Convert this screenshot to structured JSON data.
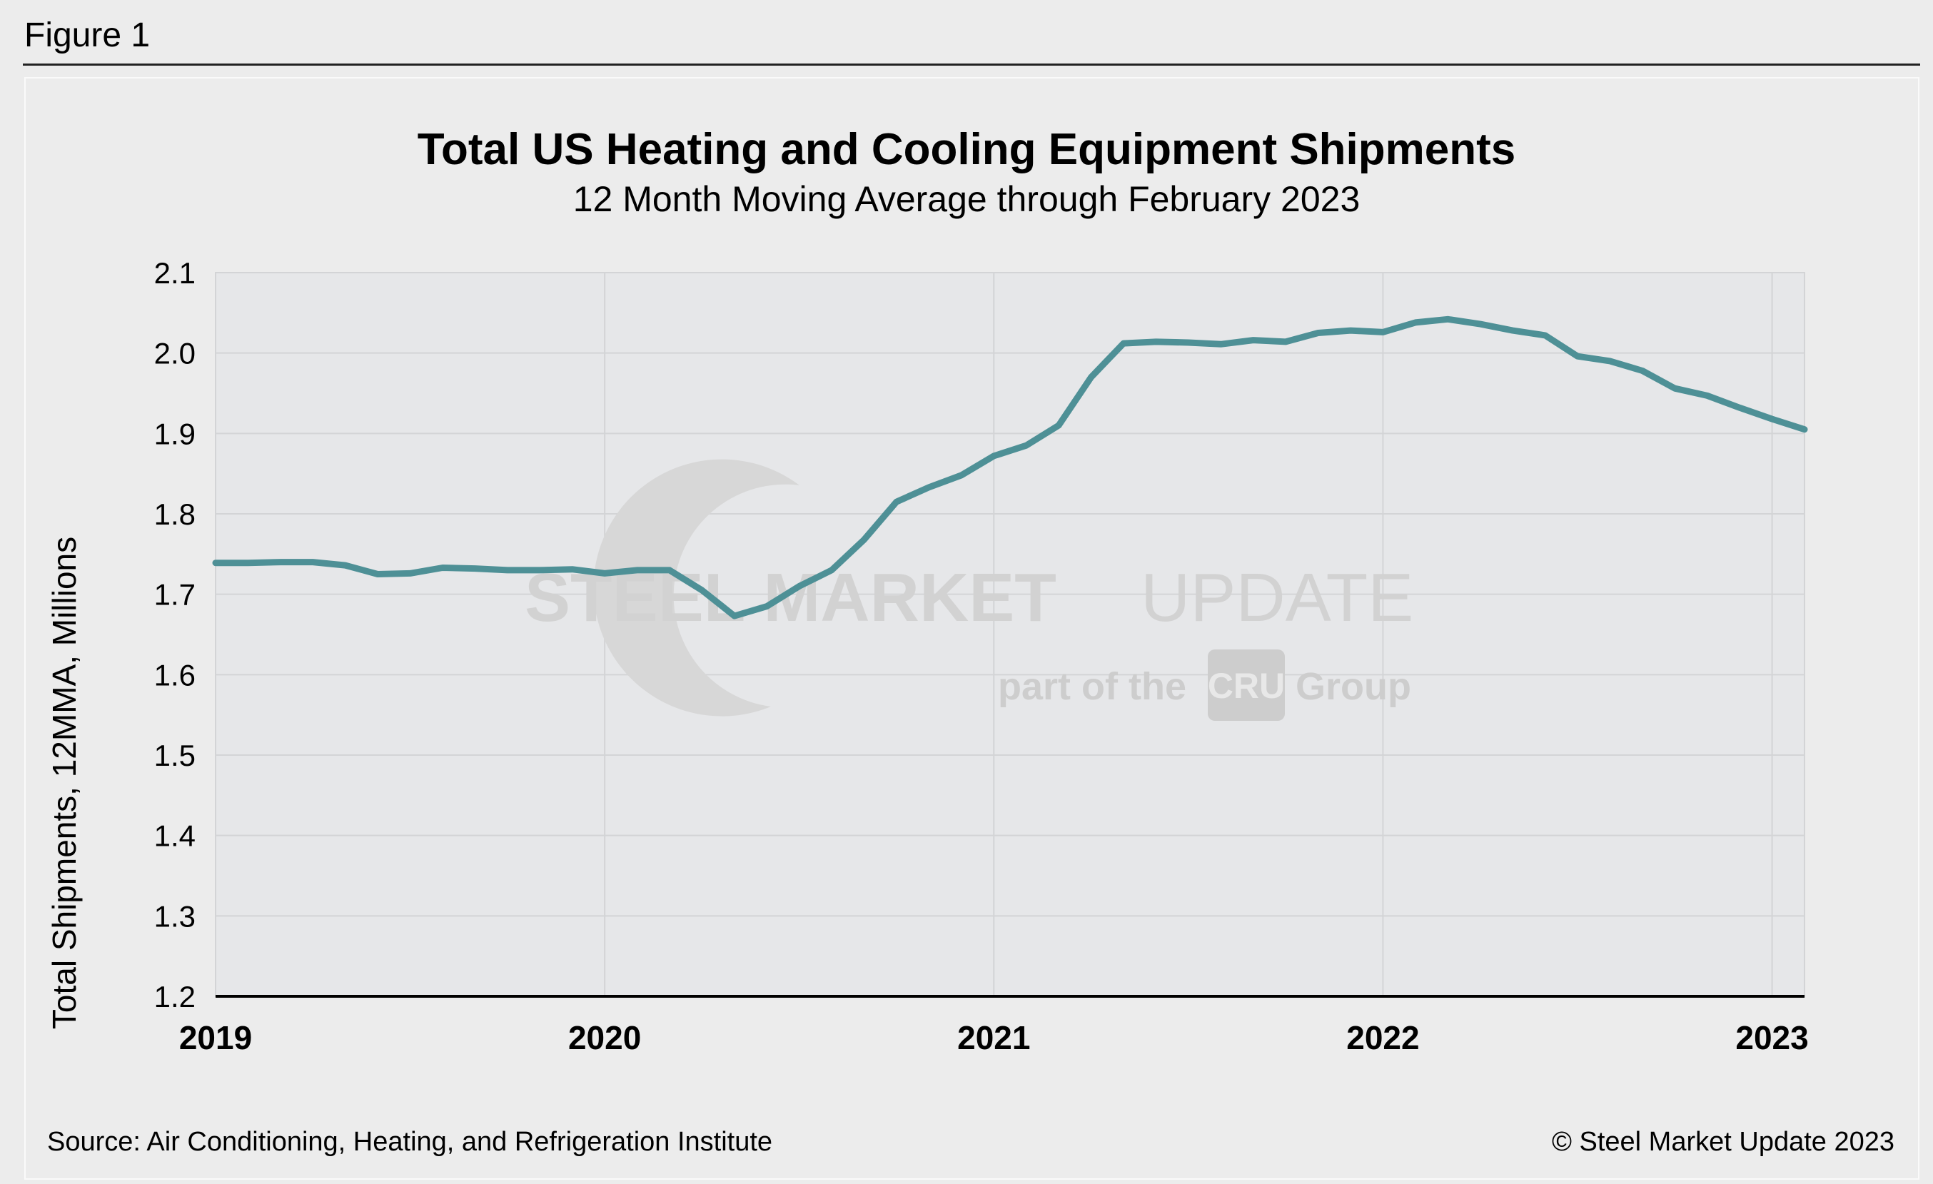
{
  "figure_label": "Figure 1",
  "source": "Source: Air Conditioning, Heating, and Refrigeration Institute",
  "copyright": "© Steel Market Update 2023",
  "watermark": {
    "brand_bold": "STEEL MARKET",
    "brand_light": "UPDATE",
    "tagline_pre": "part of the",
    "tagline_mark": "CRU",
    "tagline_post": "Group"
  },
  "colors": {
    "line": "#4e9096",
    "plot_bg": "#e6e7e9",
    "grid": "#d3d4d6",
    "axis": "#000000"
  },
  "chart_data": {
    "type": "line",
    "title": "Total US Heating and Cooling Equipment Shipments",
    "subtitle": "12 Month Moving Average through February 2023",
    "ylabel": "Total Shipments, 12MMA, Millions",
    "xlabel": "",
    "ylim": [
      1.2,
      2.1
    ],
    "yticks": [
      "1.2",
      "1.3",
      "1.4",
      "1.5",
      "1.6",
      "1.7",
      "1.8",
      "1.9",
      "2.0",
      "2.1"
    ],
    "xlim": [
      "2019-01",
      "2023-02"
    ],
    "xticks": [
      "2019",
      "2020",
      "2021",
      "2022",
      "2023"
    ],
    "grid": true,
    "legend": "none",
    "series": [
      {
        "x": [
          "2019-01",
          "2019-02",
          "2019-03",
          "2019-04",
          "2019-05",
          "2019-06",
          "2019-07",
          "2019-08",
          "2019-09",
          "2019-10",
          "2019-11",
          "2019-12",
          "2020-01",
          "2020-02",
          "2020-03",
          "2020-04",
          "2020-05",
          "2020-06",
          "2020-07",
          "2020-08",
          "2020-09",
          "2020-10",
          "2020-11",
          "2020-12",
          "2021-01",
          "2021-02",
          "2021-03",
          "2021-04",
          "2021-05",
          "2021-06",
          "2021-07",
          "2021-08",
          "2021-09",
          "2021-10",
          "2021-11",
          "2021-12",
          "2022-01",
          "2022-02",
          "2022-03",
          "2022-04",
          "2022-05",
          "2022-06",
          "2022-07",
          "2022-08",
          "2022-09",
          "2022-10",
          "2022-11",
          "2022-12",
          "2023-01",
          "2023-02"
        ],
        "values": [
          1.739,
          1.739,
          1.74,
          1.74,
          1.736,
          1.725,
          1.726,
          1.733,
          1.732,
          1.73,
          1.73,
          1.731,
          1.726,
          1.73,
          1.73,
          1.705,
          1.673,
          1.685,
          1.71,
          1.73,
          1.768,
          1.815,
          1.833,
          1.848,
          1.872,
          1.885,
          1.91,
          1.97,
          2.012,
          2.014,
          2.013,
          2.011,
          2.016,
          2.014,
          2.025,
          2.028,
          2.026,
          2.038,
          2.042,
          2.036,
          2.028,
          2.022,
          1.996,
          1.99,
          1.978,
          1.956,
          1.947,
          1.932,
          1.918,
          1.905
        ]
      }
    ]
  }
}
